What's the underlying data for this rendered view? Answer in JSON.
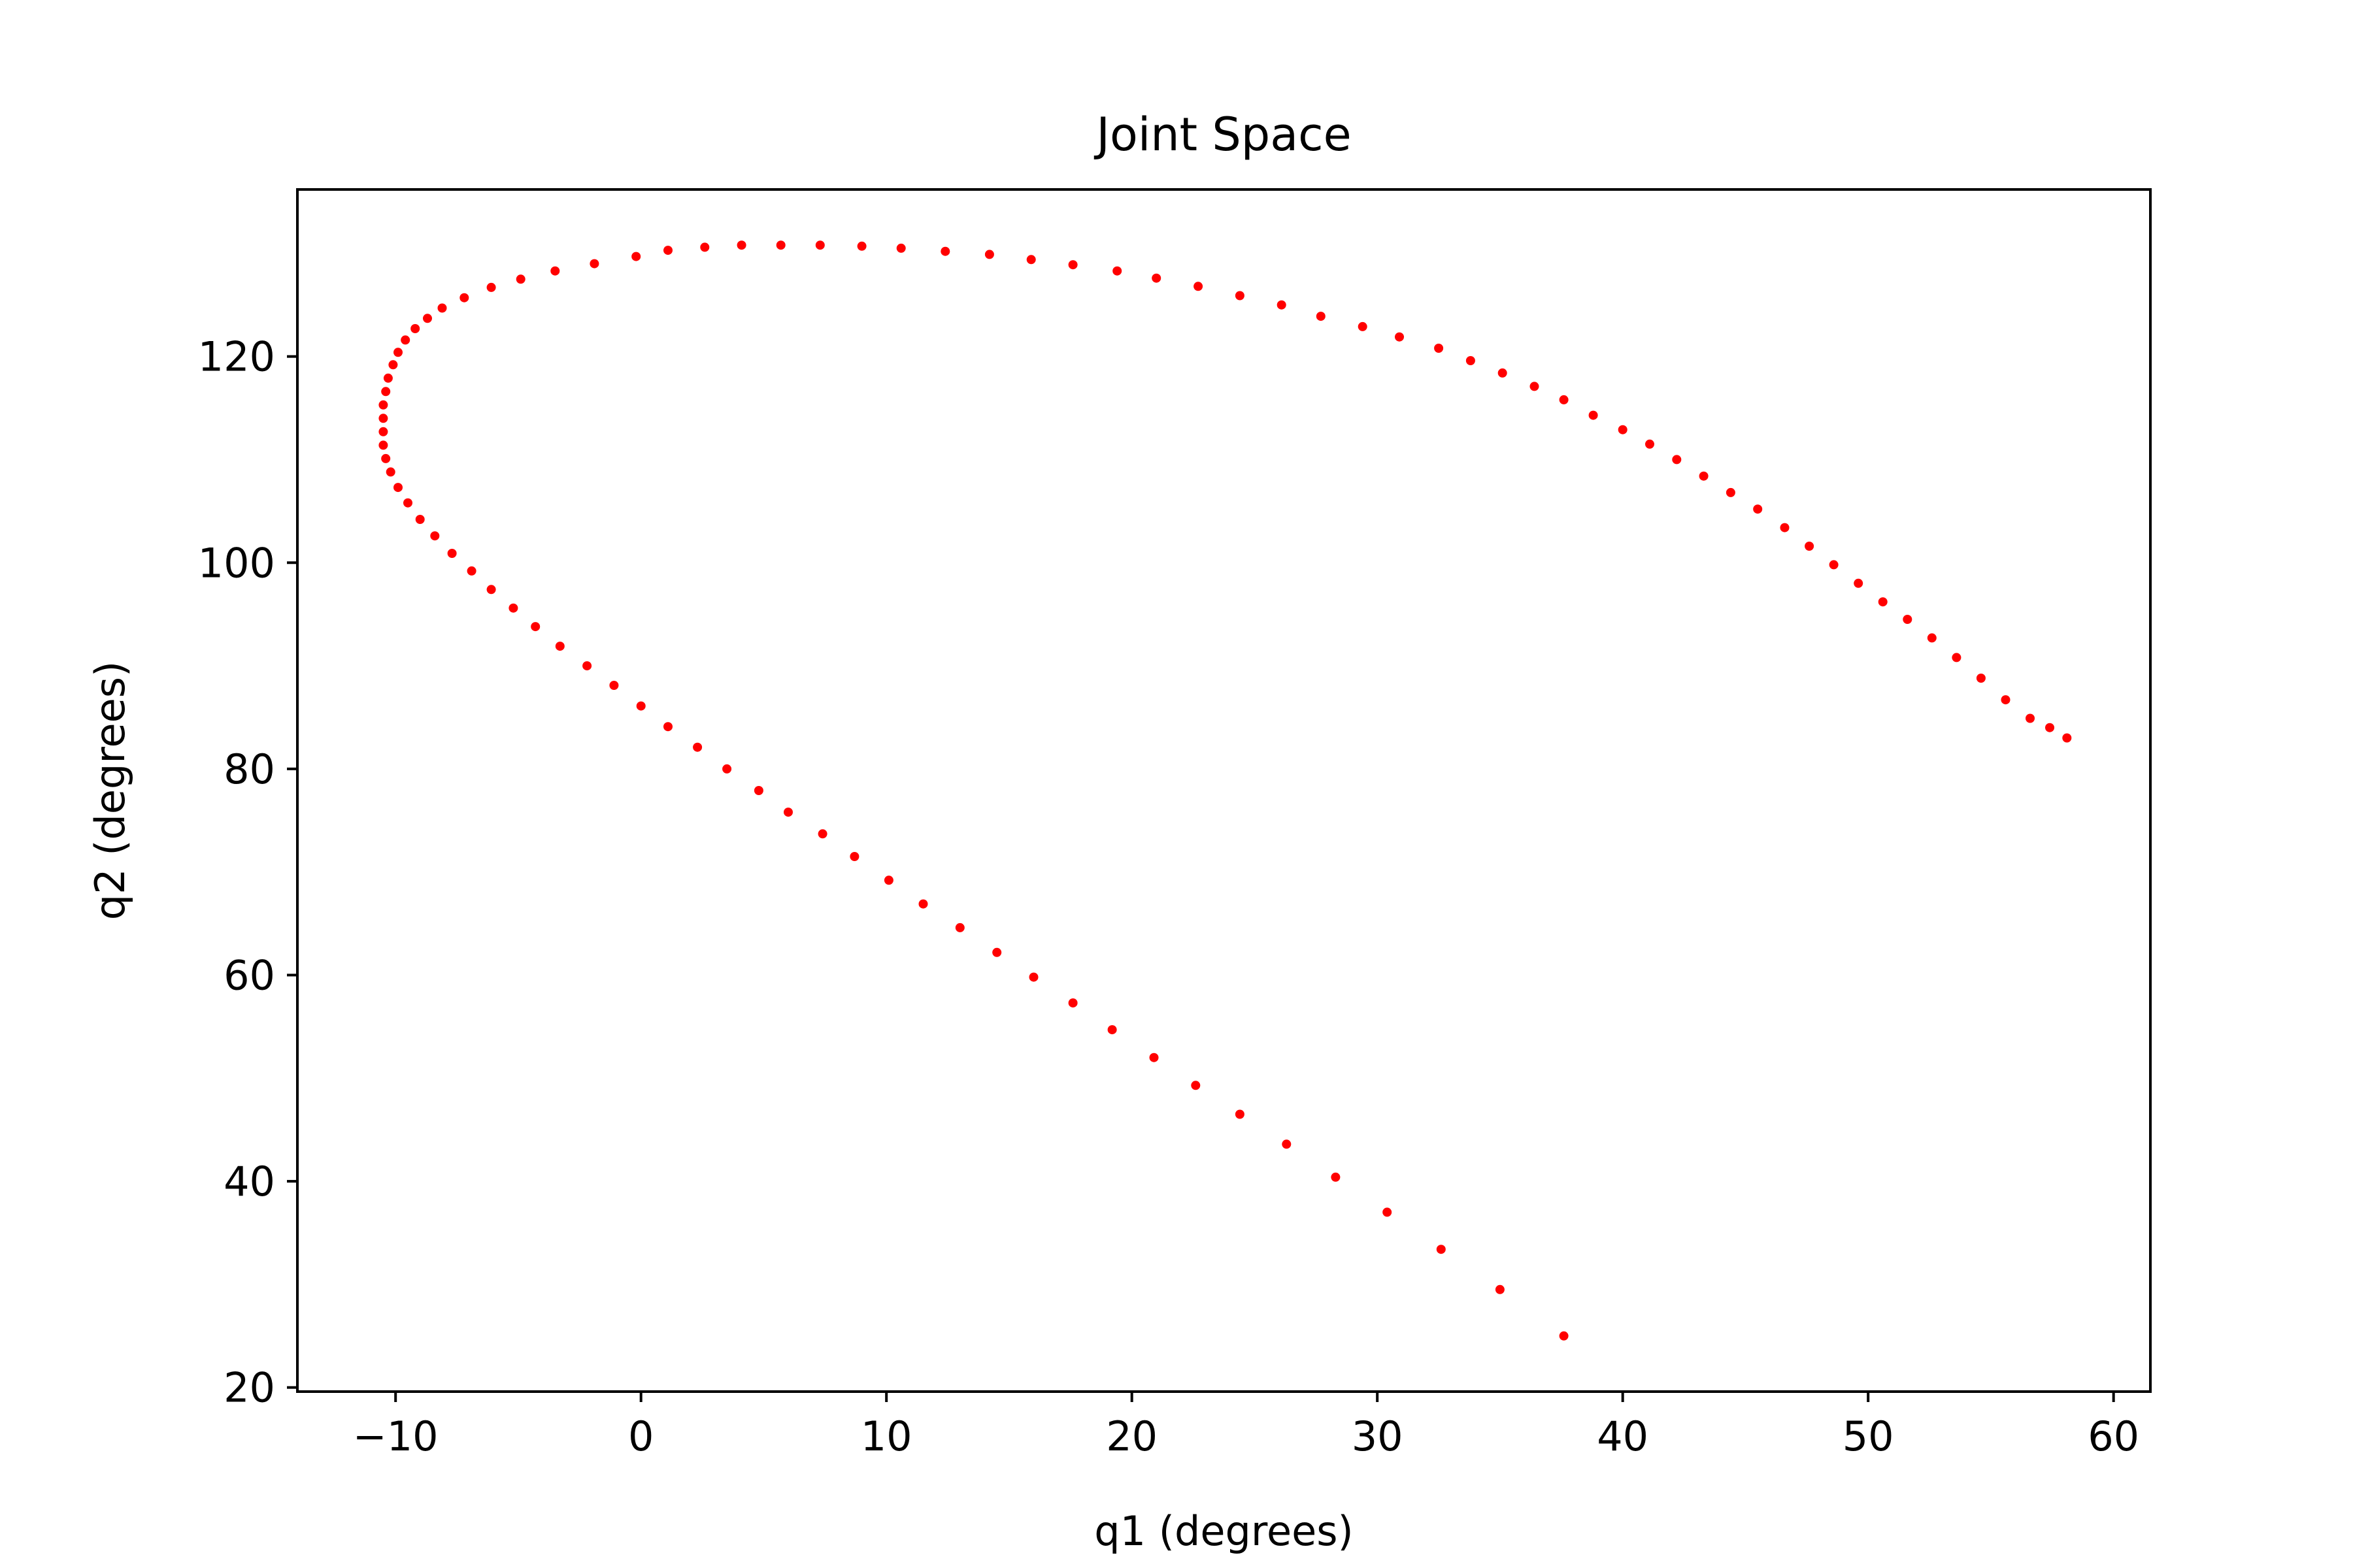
{
  "chart_data": {
    "type": "scatter",
    "title": "Joint Space",
    "xlabel": "q1 (degrees)",
    "ylabel": "q2 (degrees)",
    "xlim": [
      -14,
      61.5
    ],
    "ylim": [
      19.6,
      136.2
    ],
    "x_ticks": [
      -10,
      0,
      10,
      20,
      30,
      40,
      50,
      60
    ],
    "x_tick_labels": [
      "−10",
      "0",
      "10",
      "20",
      "30",
      "40",
      "50",
      "60"
    ],
    "y_ticks": [
      20,
      40,
      60,
      80,
      100,
      120
    ],
    "y_tick_labels": [
      "20",
      "40",
      "60",
      "80",
      "100",
      "120"
    ],
    "grid": false,
    "marker_color": "#ff0000",
    "series": [
      {
        "points": [
          [
            37.6,
            25.0
          ],
          [
            35.0,
            29.5
          ],
          [
            32.6,
            33.4
          ],
          [
            30.4,
            37.0
          ],
          [
            28.3,
            40.4
          ],
          [
            26.3,
            43.6
          ],
          [
            24.4,
            46.5
          ],
          [
            22.6,
            49.3
          ],
          [
            20.9,
            52.0
          ],
          [
            19.2,
            54.7
          ],
          [
            17.6,
            57.3
          ],
          [
            16.0,
            59.8
          ],
          [
            14.5,
            62.2
          ],
          [
            13.0,
            64.6
          ],
          [
            11.5,
            66.9
          ],
          [
            10.1,
            69.2
          ],
          [
            8.7,
            71.5
          ],
          [
            7.4,
            73.7
          ],
          [
            6.0,
            75.8
          ],
          [
            4.8,
            77.9
          ],
          [
            3.5,
            80.0
          ],
          [
            2.3,
            82.1
          ],
          [
            1.1,
            84.1
          ],
          [
            0.0,
            86.1
          ],
          [
            -1.1,
            88.1
          ],
          [
            -2.2,
            90.0
          ],
          [
            -3.3,
            91.9
          ],
          [
            -4.3,
            93.8
          ],
          [
            -5.2,
            95.6
          ],
          [
            -6.1,
            97.4
          ],
          [
            -6.9,
            99.2
          ],
          [
            -7.7,
            100.9
          ],
          [
            -8.4,
            102.6
          ],
          [
            -9.0,
            104.2
          ],
          [
            -9.5,
            105.8
          ],
          [
            -9.9,
            107.3
          ],
          [
            -10.2,
            108.8
          ],
          [
            -10.4,
            110.1
          ],
          [
            -10.5,
            111.4
          ],
          [
            -10.5,
            112.7
          ],
          [
            -10.5,
            114.0
          ],
          [
            -10.5,
            115.3
          ],
          [
            -10.4,
            116.6
          ],
          [
            -10.3,
            117.9
          ],
          [
            -10.1,
            119.2
          ],
          [
            -9.9,
            120.4
          ],
          [
            -9.6,
            121.6
          ],
          [
            -9.2,
            122.7
          ],
          [
            -8.7,
            123.7
          ],
          [
            -8.1,
            124.7
          ],
          [
            -7.2,
            125.7
          ],
          [
            -6.1,
            126.7
          ],
          [
            -4.9,
            127.5
          ],
          [
            -3.5,
            128.3
          ],
          [
            -1.9,
            129.0
          ],
          [
            -0.2,
            129.7
          ],
          [
            1.1,
            130.3
          ],
          [
            2.6,
            130.6
          ],
          [
            4.1,
            130.8
          ],
          [
            5.7,
            130.8
          ],
          [
            7.3,
            130.8
          ],
          [
            9.0,
            130.7
          ],
          [
            10.6,
            130.5
          ],
          [
            12.4,
            130.2
          ],
          [
            14.2,
            129.9
          ],
          [
            15.9,
            129.4
          ],
          [
            17.6,
            128.9
          ],
          [
            19.4,
            128.3
          ],
          [
            21.0,
            127.6
          ],
          [
            22.7,
            126.8
          ],
          [
            24.4,
            125.9
          ],
          [
            26.1,
            125.0
          ],
          [
            27.7,
            123.9
          ],
          [
            29.4,
            122.9
          ],
          [
            30.9,
            121.9
          ],
          [
            32.5,
            120.8
          ],
          [
            33.8,
            119.6
          ],
          [
            35.1,
            118.4
          ],
          [
            36.4,
            117.1
          ],
          [
            37.6,
            115.8
          ],
          [
            38.8,
            114.3
          ],
          [
            40.0,
            112.9
          ],
          [
            41.1,
            111.5
          ],
          [
            42.2,
            110.0
          ],
          [
            43.3,
            108.4
          ],
          [
            44.4,
            106.8
          ],
          [
            45.5,
            105.2
          ],
          [
            46.6,
            103.4
          ],
          [
            47.6,
            101.6
          ],
          [
            48.6,
            99.8
          ],
          [
            49.6,
            98.0
          ],
          [
            50.6,
            96.2
          ],
          [
            51.6,
            94.5
          ],
          [
            52.6,
            92.7
          ],
          [
            53.6,
            90.8
          ],
          [
            54.6,
            88.8
          ],
          [
            55.6,
            86.7
          ],
          [
            56.6,
            84.9
          ],
          [
            57.4,
            84.0
          ],
          [
            58.1,
            83.0
          ]
        ]
      }
    ]
  }
}
